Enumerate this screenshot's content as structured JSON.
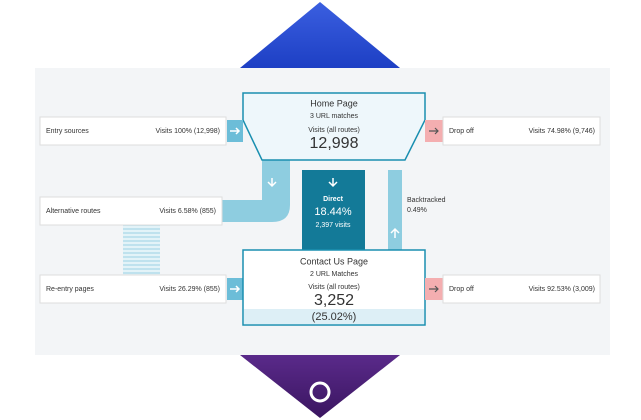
{
  "home_page": {
    "title": "Home Page",
    "matches": "3 URL matches",
    "visits_label": "Visits (all routes)",
    "visits": "12,998"
  },
  "entry_sources": {
    "label": "Entry sources",
    "visits": "Visits 100% (12,998)"
  },
  "drop_off_1": {
    "label": "Drop off",
    "visits": "Visits 74.98% (9,746)"
  },
  "alternative_routes": {
    "label": "Alternative routes",
    "visits": "Visits 6.58% (855)"
  },
  "direct": {
    "label": "Direct",
    "percent": "18.44%",
    "visits": "2,397 visits"
  },
  "backtracked": {
    "label": "Backtracked",
    "percent": "0.49%"
  },
  "reentry_pages": {
    "label": "Re-entry pages",
    "visits": "Visits 26.29% (855)"
  },
  "contact_page": {
    "title": "Contact Us Page",
    "matches": "2 URL Matches",
    "visits_label": "Visits (all routes)",
    "visits": "3,252",
    "percent": "(25.02%)"
  },
  "drop_off_2": {
    "label": "Drop off",
    "visits": "Visits 92.53% (3,009)"
  }
}
